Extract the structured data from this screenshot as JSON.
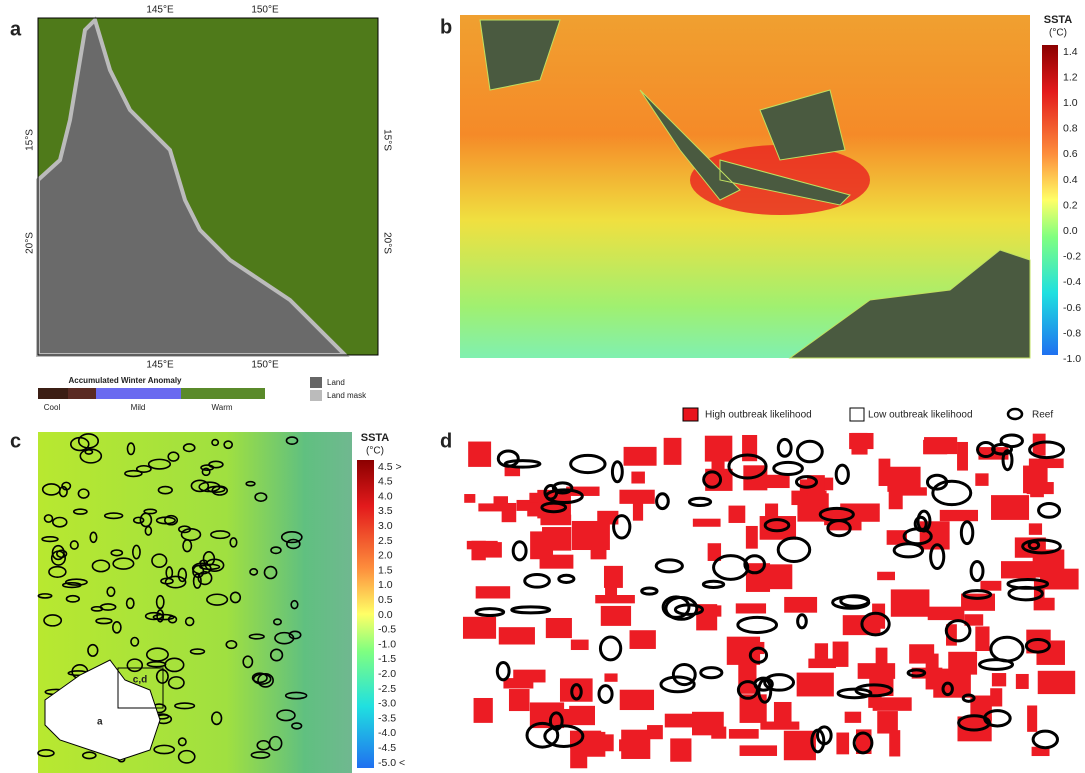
{
  "panels": {
    "a": {
      "label": "a",
      "top_ticks": [
        "145°E",
        "150°E"
      ],
      "bottom_ticks": [
        "145°E",
        "150°E"
      ],
      "left_ticks": [
        "15°S",
        "20°S"
      ],
      "right_ticks": [
        "15°S",
        "20°S"
      ],
      "legend": {
        "title": "Accumulated Winter Anomaly",
        "classes": [
          "Cool",
          "Mild",
          "Warm"
        ],
        "land": "Land",
        "land_mask": "Land mask"
      }
    },
    "b": {
      "label": "b",
      "colorbar": {
        "title": "SSTA",
        "unit": "(°C)",
        "ticks": [
          "1.4",
          "1.2",
          "1.0",
          "0.8",
          "0.6",
          "0.4",
          "0.2",
          "0.0",
          "-0.2",
          "-0.4",
          "-0.6",
          "-0.8",
          "-1.0"
        ]
      }
    },
    "c": {
      "label": "c",
      "colorbar": {
        "title": "SSTA",
        "unit": "(°C)",
        "ticks": [
          "4.5 >",
          "4.5",
          "4.0",
          "3.5",
          "3.0",
          "2.5",
          "2.0",
          "1.5",
          "1.0",
          "0.5",
          "0.0",
          "-0.5",
          "-1.0",
          "-1.5",
          "-2.0",
          "-2.5",
          "-3.0",
          "-3.5",
          "-4.0",
          "-4.5",
          "-5.0 <"
        ]
      },
      "inset": {
        "box": "c,d",
        "region": "a"
      }
    },
    "d": {
      "label": "d",
      "legend": {
        "high": "High outbreak likelihood",
        "low": "Low outbreak likelihood",
        "reef": "Reef"
      }
    }
  }
}
